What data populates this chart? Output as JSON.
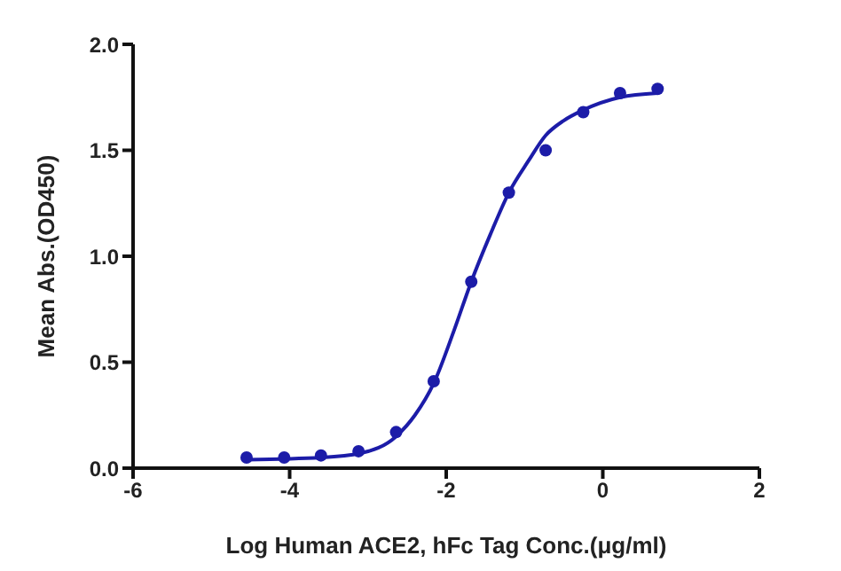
{
  "chart_data": {
    "type": "scatter",
    "xlabel": "Log Human ACE2, hFc Tag Conc.(μg/ml)",
    "ylabel": "Mean Abs.(OD450)",
    "xlim": [
      -6,
      2
    ],
    "xticks": [
      -6,
      -4,
      -2,
      0,
      2
    ],
    "ylim": [
      0,
      2.0
    ],
    "yticks": [
      {
        "value": 0,
        "label": "0.0"
      },
      {
        "value": 0.5,
        "label": "0.5"
      },
      {
        "value": 1,
        "label": "1.0"
      },
      {
        "value": 1.5,
        "label": "1.5"
      },
      {
        "value": 2,
        "label": "2.0"
      }
    ],
    "marker": "circle",
    "series": [
      {
        "color": "#1c1ca8",
        "x": [
          -4.55,
          -4.07,
          -3.6,
          -3.12,
          -2.64,
          -2.16,
          -1.68,
          -1.2,
          -0.73,
          -0.25,
          0.22,
          0.7
        ],
        "values": [
          0.05,
          0.05,
          0.06,
          0.08,
          0.17,
          0.41,
          0.88,
          1.3,
          1.5,
          1.68,
          1.77,
          1.79
        ]
      },
      {
        "type": "line",
        "color": "#1c1ca8",
        "marker": "none",
        "line_style": "solid",
        "x": [
          -4.55,
          -3.6,
          -3.1,
          -2.64,
          -2.4,
          -2.16,
          -1.9,
          -1.68,
          -1.44,
          -1.2,
          -0.95,
          -0.73,
          -0.5,
          -0.25,
          0.22,
          0.7
        ],
        "values": [
          0.04,
          0.05,
          0.07,
          0.15,
          0.25,
          0.4,
          0.65,
          0.88,
          1.1,
          1.3,
          1.45,
          1.57,
          1.64,
          1.69,
          1.75,
          1.77
        ]
      }
    ]
  }
}
